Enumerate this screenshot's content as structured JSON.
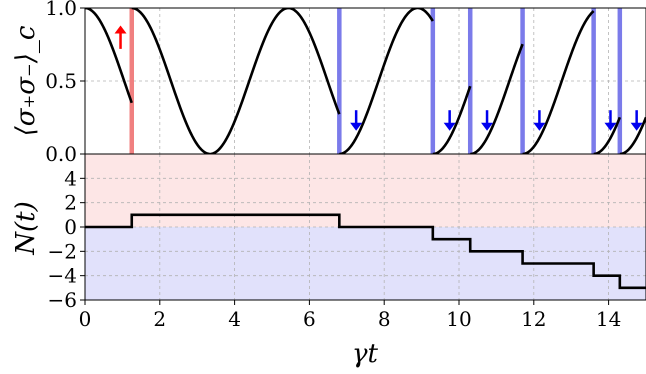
{
  "chart_data": [
    {
      "type": "line",
      "panel": "top",
      "title": "",
      "ylabel": "⟨σ₊σ₋⟩_c",
      "xlim": [
        0,
        15
      ],
      "ylim": [
        0,
        1
      ],
      "yticks": [
        "0.0",
        "0.5",
        "1.0"
      ],
      "grid": true,
      "segments": [
        {
          "t_start": 0.0,
          "t_end": 1.25,
          "y_start": 1.0,
          "kind": "decay"
        },
        {
          "t_start": 1.25,
          "t_end": 6.8,
          "y_start": 1.0,
          "kind": "oscillation"
        },
        {
          "t_start": 6.8,
          "t_end": 9.3,
          "y_start": 0.0,
          "kind": "rise_from_zero"
        },
        {
          "t_start": 9.3,
          "t_end": 10.3,
          "y_start": 0.0,
          "kind": "rise_from_zero"
        },
        {
          "t_start": 10.3,
          "t_end": 11.7,
          "y_start": 0.0,
          "kind": "rise_from_zero"
        },
        {
          "t_start": 11.7,
          "t_end": 13.6,
          "y_start": 0.0,
          "kind": "rise_from_zero"
        },
        {
          "t_start": 13.6,
          "t_end": 14.3,
          "y_start": 0.0,
          "kind": "rise_from_zero"
        },
        {
          "t_start": 14.3,
          "t_end": 15.0,
          "y_start": 0.0,
          "kind": "rise_from_zero"
        }
      ],
      "events": [
        {
          "t": 1.25,
          "type": "up",
          "color": "#f08080",
          "arrow_x": 0.95,
          "arrow_color": "#ff0000"
        },
        {
          "t": 6.8,
          "type": "down",
          "color": "#7b7bea",
          "arrow_x": 7.25,
          "arrow_color": "#0000ee"
        },
        {
          "t": 9.3,
          "type": "down",
          "color": "#7b7bea",
          "arrow_x": 9.75,
          "arrow_color": "#0000ee"
        },
        {
          "t": 10.3,
          "type": "down",
          "color": "#7b7bea",
          "arrow_x": 10.75,
          "arrow_color": "#0000ee"
        },
        {
          "t": 11.7,
          "type": "down",
          "color": "#7b7bea",
          "arrow_x": 12.15,
          "arrow_color": "#0000ee"
        },
        {
          "t": 13.6,
          "type": "down",
          "color": "#7b7bea",
          "arrow_x": 14.05,
          "arrow_color": "#0000ee"
        },
        {
          "t": 14.3,
          "type": "down",
          "color": "#7b7bea",
          "arrow_x": 14.75,
          "arrow_color": "#0000ee"
        }
      ],
      "omega": 1.5
    },
    {
      "type": "line",
      "panel": "bottom",
      "step": true,
      "title": "",
      "xlabel": "γt",
      "ylabel": "N(t)",
      "xlim": [
        0,
        15
      ],
      "ylim": [
        -6,
        6
      ],
      "xticks": [
        "0",
        "2",
        "4",
        "6",
        "8",
        "10",
        "12",
        "14"
      ],
      "yticks": [
        "−6",
        "−4",
        "−2",
        "0",
        "2",
        "4"
      ],
      "grid": true,
      "x": [
        0,
        1.25,
        6.8,
        9.3,
        10.3,
        11.7,
        13.6,
        14.3,
        15.0
      ],
      "y": [
        0,
        1,
        0,
        -1,
        -2,
        -3,
        -4,
        -5,
        -5
      ],
      "region_colors": {
        "positive": "#fde6e6",
        "negative": "#e1e1fb"
      }
    }
  ],
  "colors": {
    "curve": "#000000",
    "grid": "#b3b3b3"
  }
}
